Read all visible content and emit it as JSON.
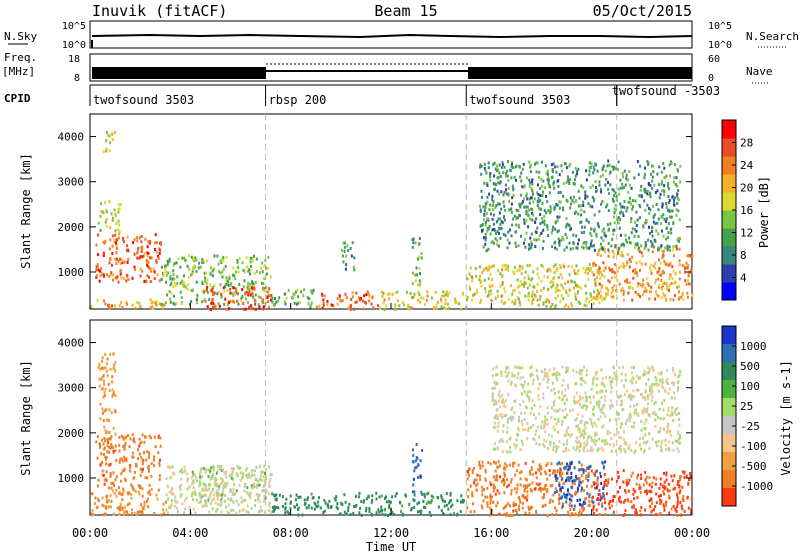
{
  "header": {
    "station": "Inuvik (fitACF)",
    "beam": "Beam 15",
    "date": "05/Oct/2015"
  },
  "time_axis": {
    "title": "Time UT",
    "ticks": [
      "00:00",
      "04:00",
      "08:00",
      "12:00",
      "16:00",
      "20:00",
      "00:00"
    ],
    "range_hours": [
      0,
      24
    ]
  },
  "strips": {
    "nsky": {
      "label": "N.Sky",
      "tick_top": "10^5",
      "tick_bottom": "10^0",
      "right_label": "N.Search",
      "right_tick_top": "10^5",
      "right_tick_bottom": "10^0"
    },
    "freq": {
      "label": "Freq.",
      "unit": "[MHz]",
      "tick_top": "18",
      "tick_bottom": "8",
      "right_label": "Nave",
      "right_tick_top": "60",
      "right_tick_bottom": "0"
    },
    "cpid": {
      "label": "CPID",
      "segments": [
        {
          "name": "twofsound 3503",
          "start_h": 0.0,
          "end_h": 7.0
        },
        {
          "name": "rbsp 200",
          "start_h": 7.0,
          "end_h": 15.0
        },
        {
          "name": "twofsound 3503",
          "start_h": 15.0,
          "end_h": 21.0
        },
        {
          "name": "twofsound -3503",
          "start_h": 21.0,
          "end_h": 24.0
        }
      ]
    }
  },
  "chart_data": [
    {
      "type": "heatmap",
      "name": "power",
      "xlabel": "Time UT",
      "ylabel": "Slant Range [km]",
      "xlim": [
        0,
        24
      ],
      "ylim": [
        180,
        4500
      ],
      "yticks": [
        "1000",
        "2000",
        "3000",
        "4000"
      ],
      "colorbar": {
        "label": "Power [dB]",
        "ticks": [
          "4",
          "8",
          "12",
          "16",
          "20",
          "24",
          "28"
        ],
        "range": [
          0,
          32
        ],
        "colors": [
          "#0000ff",
          "#2f3fb0",
          "#37877a",
          "#43a34a",
          "#7ac443",
          "#d9d930",
          "#f5b025",
          "#f07f23",
          "#e84b25",
          "#ff0000"
        ]
      },
      "regions": [
        {
          "t": [
            0.0,
            3.0
          ],
          "r": [
            200,
            420
          ],
          "value": 22
        },
        {
          "t": [
            0.2,
            2.8
          ],
          "r": [
            800,
            1900
          ],
          "value": 26
        },
        {
          "t": [
            0.3,
            1.2
          ],
          "r": [
            1900,
            2600
          ],
          "value": 16
        },
        {
          "t": [
            0.5,
            1.0
          ],
          "r": [
            3700,
            4200
          ],
          "value": 18
        },
        {
          "t": [
            2.8,
            7.2
          ],
          "r": [
            300,
            1400
          ],
          "value": 14
        },
        {
          "t": [
            4.5,
            7.2
          ],
          "r": [
            200,
            700
          ],
          "value": 28
        },
        {
          "t": [
            7.2,
            9.0
          ],
          "r": [
            250,
            650
          ],
          "value": 12
        },
        {
          "t": [
            9.0,
            11.5
          ],
          "r": [
            200,
            600
          ],
          "value": 26
        },
        {
          "t": [
            11.5,
            15.0
          ],
          "r": [
            200,
            600
          ],
          "value": 18
        },
        {
          "t": [
            12.8,
            13.2
          ],
          "r": [
            700,
            1800
          ],
          "value": 12
        },
        {
          "t": [
            10.0,
            10.5
          ],
          "r": [
            1000,
            1700
          ],
          "value": 10
        },
        {
          "t": [
            15.0,
            20.5
          ],
          "r": [
            250,
            1200
          ],
          "value": 18
        },
        {
          "t": [
            20.0,
            24.0
          ],
          "r": [
            400,
            1600
          ],
          "value": 22
        },
        {
          "t": [
            15.5,
            23.5
          ],
          "r": [
            1500,
            3500
          ],
          "value": 10
        }
      ]
    },
    {
      "type": "heatmap",
      "name": "velocity",
      "xlabel": "Time UT",
      "ylabel": "Slant Range [km]",
      "xlim": [
        0,
        24
      ],
      "ylim": [
        180,
        4500
      ],
      "yticks": [
        "1000",
        "2000",
        "3000",
        "4000"
      ],
      "colorbar": {
        "label": "Velocity [m s-1]",
        "ticks": [
          "1000",
          "500",
          "100",
          "25",
          "-25",
          "-100",
          "-500",
          "-1000"
        ],
        "colors": [
          "#1c35c8",
          "#2f6fb3",
          "#2e8a5a",
          "#4fb23c",
          "#a3dc6b",
          "#c7c7c7",
          "#f5c48a",
          "#f0a040",
          "#f07f23",
          "#ff3a10"
        ]
      },
      "regions": [
        {
          "t": [
            0.0,
            3.0
          ],
          "r": [
            200,
            800
          ],
          "value": -100
        },
        {
          "t": [
            0.2,
            2.8
          ],
          "r": [
            800,
            2000
          ],
          "value": -300
        },
        {
          "t": [
            0.3,
            1.0
          ],
          "r": [
            2000,
            3800
          ],
          "value": -80
        },
        {
          "t": [
            3.0,
            7.2
          ],
          "r": [
            250,
            1300
          ],
          "value": 0
        },
        {
          "t": [
            4.0,
            7.0
          ],
          "r": [
            500,
            1300
          ],
          "value": 10
        },
        {
          "t": [
            7.2,
            15.0
          ],
          "r": [
            200,
            700
          ],
          "value": 100
        },
        {
          "t": [
            12.8,
            13.2
          ],
          "r": [
            700,
            1800
          ],
          "value": 500
        },
        {
          "t": [
            15.0,
            20.0
          ],
          "r": [
            200,
            1400
          ],
          "value": -300
        },
        {
          "t": [
            18.5,
            20.5
          ],
          "r": [
            400,
            1400
          ],
          "value": 600
        },
        {
          "t": [
            20.0,
            24.0
          ],
          "r": [
            200,
            1200
          ],
          "value": -500
        },
        {
          "t": [
            16.0,
            23.5
          ],
          "r": [
            1600,
            3500
          ],
          "value": 0
        }
      ]
    }
  ]
}
